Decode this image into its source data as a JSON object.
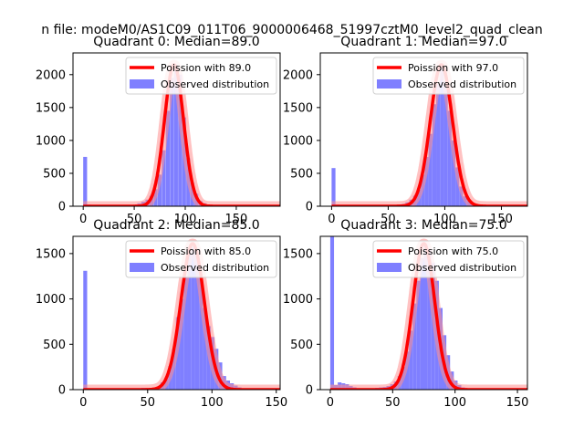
{
  "suptitle": "n file: modeM0/AS1C09_011T06_9000006468_51997cztM0_level2_quad_clean",
  "colors": {
    "hist": "#7f7fff",
    "fit": "#ff0000",
    "band": "#ff9090",
    "axis": "#000000"
  },
  "chart_data": [
    {
      "type": "bar",
      "title": "Quadrant 0: Median=89.0",
      "median": 89.0,
      "xlim": [
        -10,
        193
      ],
      "ylim": [
        0,
        2330
      ],
      "xticks": [
        0,
        50,
        100,
        150
      ],
      "yticks": [
        0,
        500,
        1000,
        1500,
        2000
      ],
      "xticklabels": [
        "0",
        "50",
        "100",
        "150"
      ],
      "yticklabels": [
        "0",
        "500",
        "1000",
        "1500",
        "2000"
      ],
      "legend": {
        "fit_label": "Poission with 89.0",
        "hist_label": "Observed distribution",
        "loc": "upper right"
      },
      "bin_width": 3.8,
      "bins": [
        [
          0,
          750
        ],
        [
          3.8,
          25
        ],
        [
          7.6,
          10
        ],
        [
          45,
          15
        ],
        [
          49,
          25
        ],
        [
          53,
          45
        ],
        [
          57,
          70
        ],
        [
          61,
          100
        ],
        [
          65,
          160
        ],
        [
          69,
          260
        ],
        [
          73,
          480
        ],
        [
          77,
          850
        ],
        [
          81,
          1450
        ],
        [
          85,
          1950
        ],
        [
          89,
          2150
        ],
        [
          93,
          2000
        ],
        [
          97,
          1350
        ],
        [
          101,
          730
        ],
        [
          105,
          360
        ],
        [
          109,
          190
        ],
        [
          113,
          80
        ],
        [
          117,
          45
        ],
        [
          121,
          25
        ],
        [
          125,
          15
        ]
      ],
      "fit": {
        "amplitude": 2150,
        "mean": 89.0,
        "sd": 9.4,
        "band": 2.2
      }
    },
    {
      "type": "bar",
      "title": "Quadrant 1: Median=97.0",
      "median": 97.0,
      "xlim": [
        -10,
        173
      ],
      "ylim": [
        0,
        2330
      ],
      "xticks": [
        0,
        50,
        100,
        150
      ],
      "yticks": [
        0,
        500,
        1000,
        1500,
        2000
      ],
      "xticklabels": [
        "0",
        "50",
        "100",
        "150"
      ],
      "yticklabels": [
        "0",
        "500",
        "1000",
        "1500",
        "2000"
      ],
      "legend": {
        "fit_label": "Poission with 97.0",
        "hist_label": "Observed distribution",
        "loc": "upper right"
      },
      "bin_width": 3.4,
      "bins": [
        [
          0,
          580
        ],
        [
          3.4,
          25
        ],
        [
          6.8,
          10
        ],
        [
          55,
          15
        ],
        [
          58.4,
          25
        ],
        [
          61.8,
          35
        ],
        [
          65.2,
          60
        ],
        [
          68.6,
          100
        ],
        [
          72,
          160
        ],
        [
          75.4,
          250
        ],
        [
          78.8,
          480
        ],
        [
          82.2,
          750
        ],
        [
          85.6,
          1100
        ],
        [
          89,
          1550
        ],
        [
          92.4,
          1850
        ],
        [
          95.8,
          2150
        ],
        [
          99.2,
          1900
        ],
        [
          102.6,
          1450
        ],
        [
          106,
          1000
        ],
        [
          109.4,
          590
        ],
        [
          112.8,
          300
        ],
        [
          116.2,
          150
        ],
        [
          119.6,
          80
        ],
        [
          123,
          45
        ],
        [
          126.4,
          20
        ]
      ],
      "fit": {
        "amplitude": 2150,
        "mean": 97.0,
        "sd": 9.8,
        "band": 2.2
      }
    },
    {
      "type": "bar",
      "title": "Quadrant 2: Median=85.0",
      "median": 85.0,
      "xlim": [
        -8,
        153
      ],
      "ylim": [
        0,
        1690
      ],
      "xticks": [
        0,
        50,
        100,
        150
      ],
      "yticks": [
        0,
        500,
        1000,
        1500
      ],
      "xticklabels": [
        "0",
        "50",
        "100",
        "150"
      ],
      "yticklabels": [
        "0",
        "500",
        "1000",
        "1500"
      ],
      "legend": {
        "fit_label": "Poission with 85.0",
        "hist_label": "Observed distribution",
        "loc": "upper right"
      },
      "bin_width": 3.0,
      "bins": [
        [
          0,
          1310
        ],
        [
          3,
          15
        ],
        [
          6,
          10
        ],
        [
          45,
          20
        ],
        [
          48,
          15
        ],
        [
          51,
          20
        ],
        [
          54,
          25
        ],
        [
          57,
          35
        ],
        [
          60,
          80
        ],
        [
          63,
          120
        ],
        [
          66,
          260
        ],
        [
          69,
          450
        ],
        [
          72,
          800
        ],
        [
          75,
          1000
        ],
        [
          78,
          1250
        ],
        [
          81,
          1500
        ],
        [
          84,
          1580
        ],
        [
          87,
          1480
        ],
        [
          90,
          1250
        ],
        [
          93,
          900
        ],
        [
          96,
          700
        ],
        [
          99,
          580
        ],
        [
          102,
          450
        ],
        [
          105,
          300
        ],
        [
          108,
          150
        ],
        [
          111,
          100
        ],
        [
          114,
          70
        ],
        [
          117,
          45
        ],
        [
          120,
          25
        ],
        [
          123,
          15
        ]
      ],
      "fit": {
        "amplitude": 1610,
        "mean": 85.0,
        "sd": 9.1,
        "band": 2.2
      }
    },
    {
      "type": "bar",
      "title": "Quadrant 3: Median=75.0",
      "median": 75.0,
      "xlim": [
        -8,
        158
      ],
      "ylim": [
        0,
        1690
      ],
      "xticks": [
        0,
        50,
        100,
        150
      ],
      "yticks": [
        0,
        500,
        1000,
        1500
      ],
      "xticklabels": [
        "0",
        "50",
        "100",
        "150"
      ],
      "yticklabels": [
        "0",
        "500",
        "1000",
        "1500"
      ],
      "legend": {
        "fit_label": "Poission with 75.0",
        "hist_label": "Observed distribution",
        "loc": "upper right"
      },
      "bin_width": 3.0,
      "bins": [
        [
          0,
          1690
        ],
        [
          3,
          50
        ],
        [
          6,
          80
        ],
        [
          9,
          70
        ],
        [
          12,
          60
        ],
        [
          15,
          40
        ],
        [
          18,
          25
        ],
        [
          21,
          15
        ],
        [
          24,
          10
        ],
        [
          36,
          20
        ],
        [
          39,
          25
        ],
        [
          42,
          30
        ],
        [
          45,
          40
        ],
        [
          48,
          60
        ],
        [
          51,
          90
        ],
        [
          54,
          150
        ],
        [
          57,
          250
        ],
        [
          60,
          420
        ],
        [
          63,
          650
        ],
        [
          66,
          950
        ],
        [
          69,
          1200
        ],
        [
          72,
          1450
        ],
        [
          75,
          1600
        ],
        [
          78,
          1550
        ],
        [
          81,
          1400
        ],
        [
          84,
          1200
        ],
        [
          87,
          900
        ],
        [
          90,
          600
        ],
        [
          93,
          380
        ],
        [
          96,
          200
        ],
        [
          99,
          100
        ],
        [
          102,
          50
        ],
        [
          105,
          25
        ]
      ],
      "fit": {
        "amplitude": 1610,
        "mean": 75.0,
        "sd": 8.7,
        "band": 2.2
      }
    }
  ]
}
